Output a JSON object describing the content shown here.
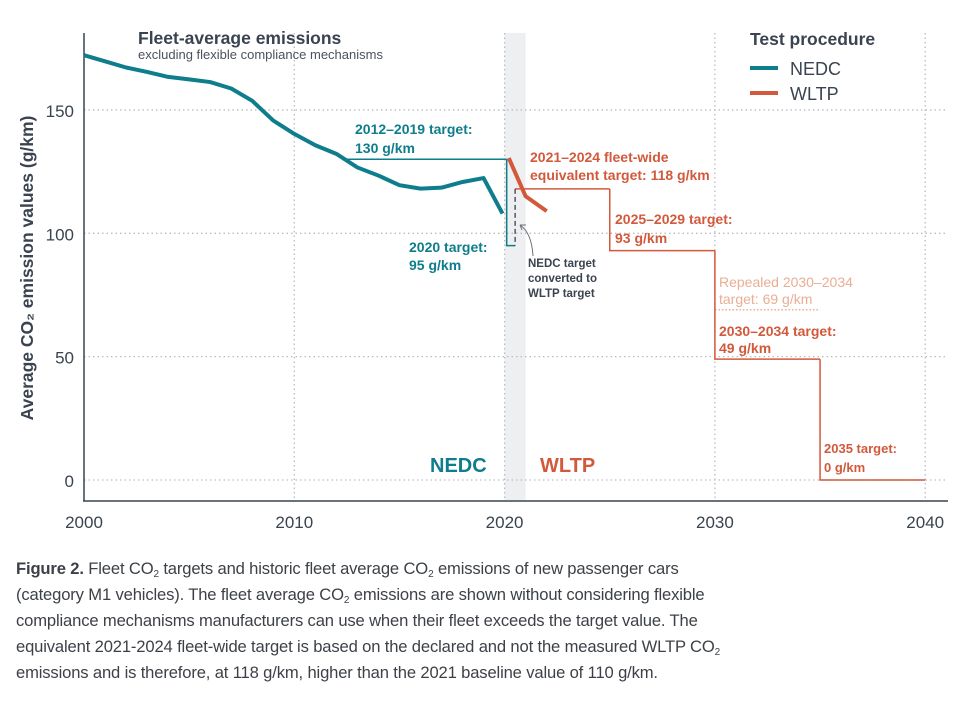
{
  "chart_data": {
    "type": "line",
    "title": "Fleet-average emissions",
    "subtitle": "excluding flexible compliance mechanisms",
    "ylabel": "Average CO₂ emission values (g/km)",
    "xlabel": "",
    "xlim": [
      2000,
      2040
    ],
    "ylim": [
      0,
      175
    ],
    "x_ticks": [
      "2000",
      "2010",
      "2020",
      "2030",
      "2040"
    ],
    "y_ticks": [
      "0",
      "50",
      "100",
      "150"
    ],
    "grid": true,
    "legend": {
      "title": "Test procedure",
      "position": "top-right",
      "entries": [
        "NEDC",
        "WLTP"
      ]
    },
    "colors": {
      "NEDC": "#0e7d8c",
      "WLTP": "#d2593b",
      "repealed": "#eaae93",
      "axis": "#3a4350",
      "band": "#eeeff1",
      "annotation": "#3a4350"
    },
    "series": [
      {
        "name": "NEDC",
        "x": [
          2000,
          2001,
          2002,
          2003,
          2004,
          2005,
          2006,
          2007,
          2008,
          2009,
          2010,
          2011,
          2012,
          2013,
          2014,
          2015,
          2016,
          2017,
          2018,
          2019,
          2019.9
        ],
        "y": [
          172.2,
          169.7,
          167.2,
          165.4,
          163.4,
          162.4,
          161.3,
          158.7,
          153.7,
          145.7,
          140.3,
          135.7,
          132.2,
          126.7,
          123.4,
          119.5,
          118.1,
          118.5,
          120.8,
          122.4,
          108
        ]
      },
      {
        "name": "WLTP",
        "x": [
          2020.2,
          2021,
          2022
        ],
        "y": [
          130.5,
          115,
          109
        ]
      }
    ],
    "targets": [
      {
        "label": [
          "2012–2019 target:",
          "130 g/km"
        ],
        "procedure": "NEDC",
        "from": 2012.5,
        "to": 2020.1,
        "value": 130
      },
      {
        "label": [
          "2020 target:",
          "95 g/km"
        ],
        "procedure": "NEDC",
        "from": 2020.1,
        "to": 2020.5,
        "value": 95
      },
      {
        "label": [
          "2021–2024 fleet-wide",
          "equivalent target: 118 g/km"
        ],
        "procedure": "WLTP",
        "from": 2020.5,
        "to": 2025,
        "value": 118
      },
      {
        "label": [
          "2025–2029 target:",
          "93 g/km"
        ],
        "procedure": "WLTP",
        "from": 2025,
        "to": 2030,
        "value": 93
      },
      {
        "label": [
          "Repealed 2030–2034",
          "target: 69 g/km"
        ],
        "procedure": "repealed",
        "from": 2030,
        "to": 2035,
        "value": 69
      },
      {
        "label": [
          "2030–2034 target:",
          "49 g/km"
        ],
        "procedure": "WLTP",
        "from": 2030,
        "to": 2035,
        "value": 49
      },
      {
        "label": [
          "2035 target:",
          "0 g/km"
        ],
        "procedure": "WLTP",
        "from": 2035,
        "to": 2040,
        "value": 0
      }
    ],
    "transition_band": [
      2020,
      2021
    ],
    "annotations": {
      "conversion": [
        "NEDC target",
        "converted to",
        "WLTP target"
      ],
      "region_nedc": "NEDC",
      "region_wltp": "WLTP"
    }
  },
  "caption": {
    "lines": [
      [
        {
          "b": "Figure 2."
        },
        {
          "t": " Fleet CO"
        },
        {
          "s": "2"
        },
        {
          "t": " targets and historic fleet average CO"
        },
        {
          "s": "2"
        },
        {
          "t": " emissions of new passenger cars"
        }
      ],
      [
        {
          "t": "(category M1 vehicles). The fleet average CO"
        },
        {
          "s": "2"
        },
        {
          "t": " emissions are shown without considering flexible"
        }
      ],
      [
        {
          "t": "compliance mechanisms manufacturers can use when their fleet exceeds the target value. The"
        }
      ],
      [
        {
          "t": "equivalent 2021-2024 fleet-wide target is based on the declared and not the measured WLTP CO"
        },
        {
          "s": "2"
        }
      ],
      [
        {
          "t": "emissions and is therefore, at 118 g/km, higher than the 2021 baseline value of 110 g/km."
        }
      ]
    ]
  }
}
